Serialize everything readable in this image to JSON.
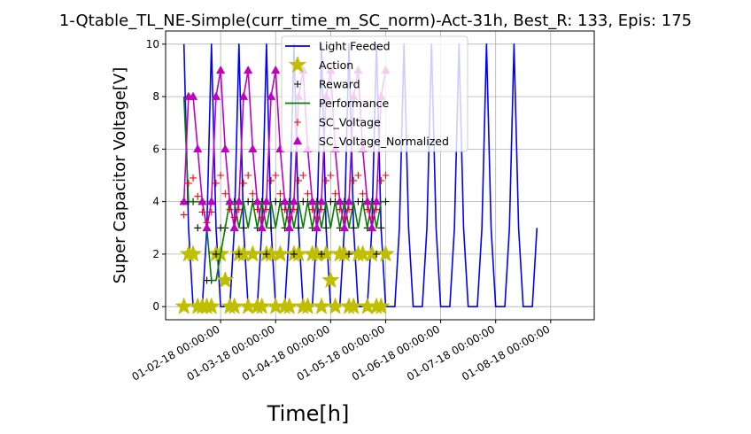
{
  "chart_data": {
    "type": "line",
    "title": "1-Qtable_TL_NE-Simple(curr_time_m_SC_norm)-Act-31h, Best_R: 133, Epis: 175",
    "xlabel": "Time[h]",
    "ylabel": "Super Capacitor Voltage[V]",
    "x_tick_labels": [
      "01-02-18 00:00:00",
      "01-03-18 00:00:00",
      "01-04-18 00:00:00",
      "01-05-18 00:00:00",
      "01-06-18 00:00:00",
      "01-07-18 00:00:00",
      "01-08-18 00:00:00"
    ],
    "x_ticks_hours": [
      24,
      48,
      72,
      96,
      120,
      144,
      168
    ],
    "xlim_hours": [
      0,
      187
    ],
    "ylim": [
      -0.5,
      10.5
    ],
    "y_ticks": [
      0,
      2,
      4,
      6,
      8,
      10
    ],
    "grid": true,
    "legend_position": "upper-center",
    "sample_step_hours": 2,
    "series": [
      {
        "name": "Light Feeded",
        "color": "#0000ff",
        "marker": "none",
        "x_start_hours": 8,
        "values": [
          10,
          3,
          0,
          0,
          0,
          3,
          10,
          3,
          0,
          0,
          0,
          3,
          10,
          3,
          0,
          0,
          0,
          3,
          10,
          3,
          0,
          0,
          0,
          3,
          10,
          3,
          0,
          0,
          0,
          3,
          10,
          3,
          0,
          0,
          0,
          3,
          10,
          3,
          0,
          0,
          0,
          3,
          10,
          3,
          0,
          0,
          0,
          3,
          10,
          3,
          0,
          0,
          0,
          3,
          10,
          3,
          0,
          0,
          0,
          3,
          10,
          3,
          0,
          0,
          0,
          3,
          10,
          3,
          0,
          0,
          0,
          3,
          10,
          3,
          0,
          0,
          0,
          3
        ]
      },
      {
        "name": "Action",
        "color": "#bfbf00",
        "marker": "star",
        "x_start_hours": 8,
        "values": [
          0,
          2,
          2,
          0,
          0,
          0,
          0,
          2,
          2,
          1,
          0,
          0,
          2,
          2,
          0,
          2,
          0,
          0,
          2,
          2,
          0,
          2,
          0,
          0,
          2,
          2,
          0,
          0,
          2,
          2,
          0,
          2,
          1,
          0,
          2,
          2,
          0,
          0,
          2,
          2,
          0,
          2,
          0,
          0,
          2
        ]
      },
      {
        "name": "Reward",
        "color": "#000000",
        "marker": "plus",
        "x_start_hours": 8,
        "values": [
          4,
          4,
          4,
          3,
          4,
          1,
          1,
          2,
          3,
          3,
          4,
          4,
          2,
          3,
          4,
          4,
          3,
          4,
          2,
          3,
          4,
          4,
          3,
          4,
          2,
          3,
          4,
          4,
          3,
          4,
          2,
          3,
          4,
          4,
          3,
          4,
          2,
          3,
          4,
          4,
          3,
          4,
          2,
          3,
          4
        ]
      },
      {
        "name": "Performance",
        "color": "#008000",
        "marker": "none",
        "x_start_hours": 8,
        "values": [
          8,
          4,
          4,
          4,
          4,
          3,
          1,
          1,
          2,
          3,
          4,
          4,
          3,
          4,
          3,
          4,
          3,
          4,
          3,
          4,
          3,
          4,
          3,
          4,
          3,
          4,
          3,
          4,
          3,
          4,
          3,
          4,
          3,
          4,
          3,
          4,
          3,
          4,
          3,
          4,
          3,
          4,
          3,
          4,
          4
        ]
      },
      {
        "name": "SC_Voltage",
        "color": "#ff0000",
        "marker": "plus",
        "x_start_hours": 8,
        "values": [
          3.5,
          4.7,
          4.9,
          4.2,
          3.6,
          3.2,
          3.6,
          4.7,
          5.0,
          4.3,
          3.7,
          3.4,
          3.7,
          4.7,
          5.0,
          4.3,
          3.7,
          3.4,
          3.7,
          4.8,
          5.0,
          4.3,
          3.7,
          3.4,
          3.7,
          4.8,
          5.0,
          4.3,
          3.7,
          3.4,
          3.7,
          4.8,
          5.0,
          4.3,
          3.7,
          3.4,
          3.7,
          4.8,
          5.0,
          4.3,
          3.7,
          3.4,
          3.7,
          4.8,
          5.0
        ]
      },
      {
        "name": "SC_Voltage_Normalized",
        "color": "#bf00bf",
        "marker": "triangle",
        "x_start_hours": 8,
        "values": [
          4,
          8,
          8,
          6,
          4,
          3,
          4,
          8,
          9,
          6,
          4,
          3,
          4,
          8,
          9,
          6,
          4,
          3,
          4,
          8,
          9,
          6,
          4,
          3,
          4,
          8,
          9,
          6,
          4,
          3,
          4,
          8,
          9,
          6,
          4,
          3,
          4,
          8,
          9,
          6,
          4,
          3,
          4,
          8,
          9
        ]
      }
    ]
  }
}
